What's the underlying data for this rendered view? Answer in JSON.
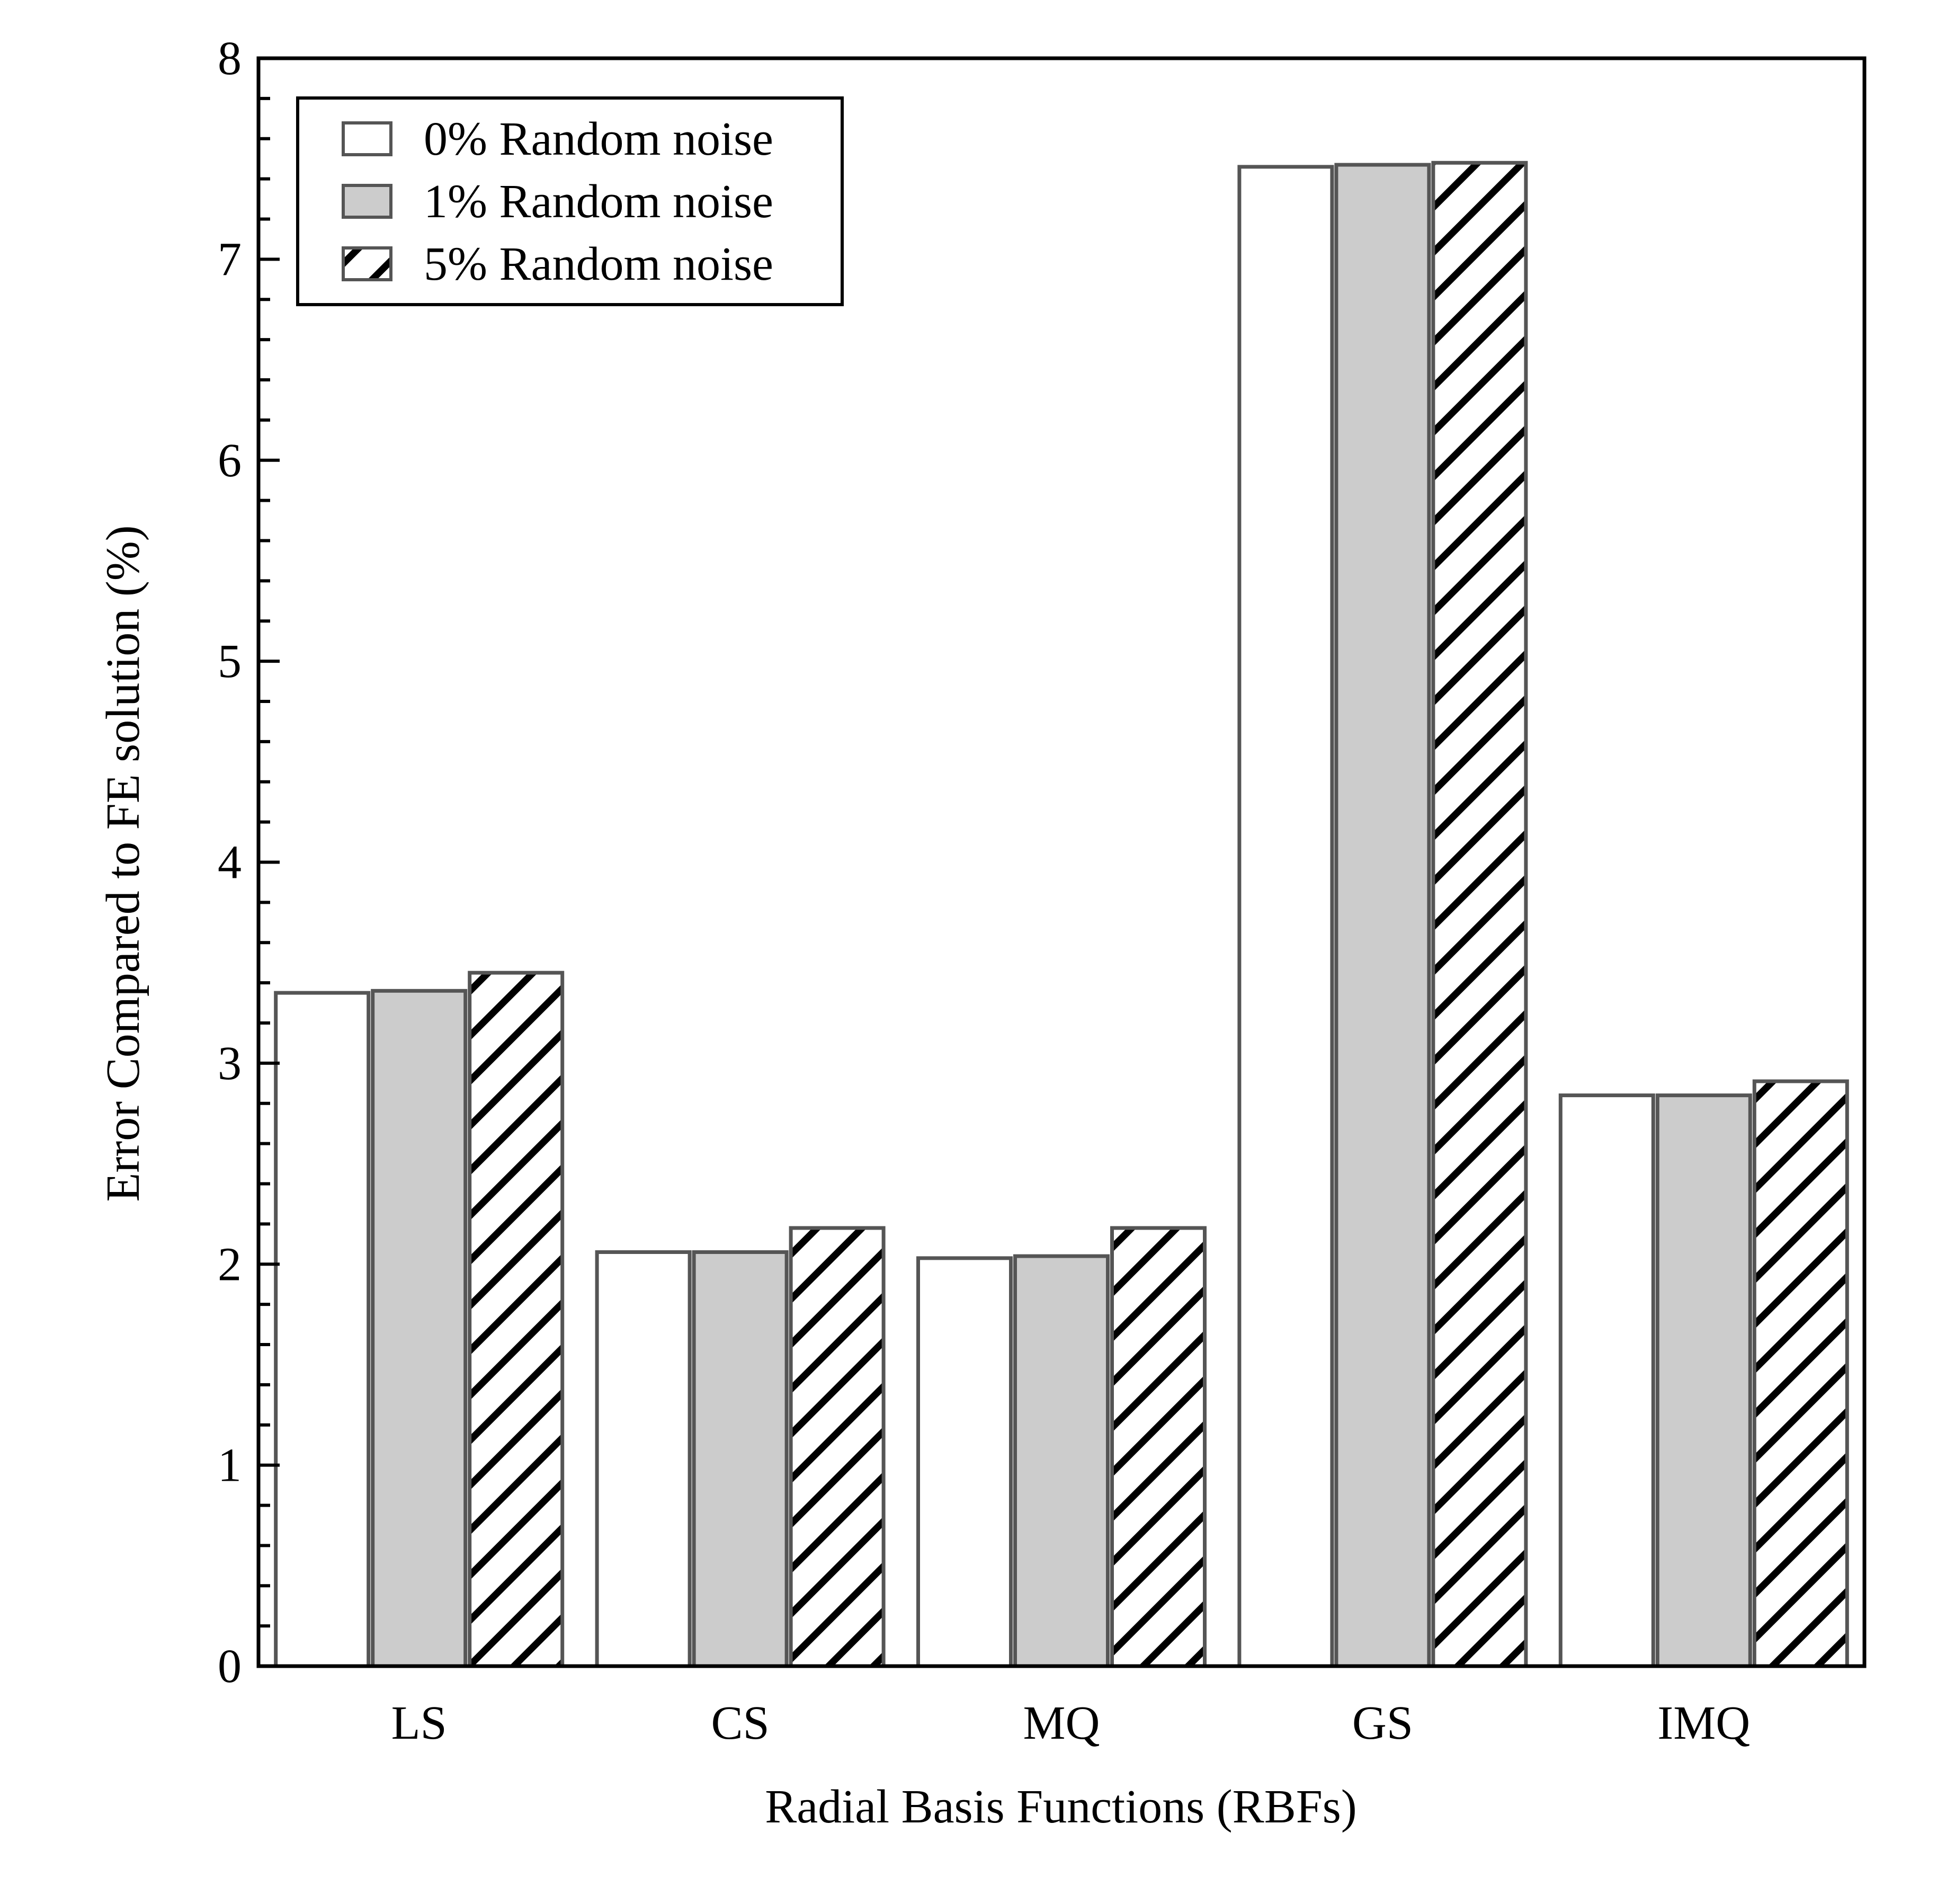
{
  "chart_data": {
    "type": "bar",
    "title": "",
    "xlabel": "Radial Basis Functions (RBFs)",
    "ylabel": "Error Compared to FE solution (%)",
    "ylim": [
      0,
      8
    ],
    "yticks": [
      0,
      1,
      2,
      3,
      4,
      5,
      6,
      7,
      8
    ],
    "y_minor_step": 0.2,
    "categories": [
      "LS",
      "CS",
      "MQ",
      "GS",
      "IMQ"
    ],
    "series": [
      {
        "name": "0% Random noise",
        "values": [
          3.35,
          2.06,
          2.03,
          7.46,
          2.84
        ],
        "fill": "#ffffff",
        "pattern": "none"
      },
      {
        "name": "1% Random noise",
        "values": [
          3.36,
          2.06,
          2.04,
          7.47,
          2.84
        ],
        "fill": "#cccccc",
        "pattern": "none"
      },
      {
        "name": "5% Random noise",
        "values": [
          3.45,
          2.18,
          2.18,
          7.48,
          2.91
        ],
        "fill": "#ffffff",
        "pattern": "hatch"
      }
    ],
    "legend_position": "top-left",
    "grid": false,
    "colors": {
      "bar_edge": "#555555",
      "axis": "#000000",
      "hatch": "#000000"
    }
  }
}
